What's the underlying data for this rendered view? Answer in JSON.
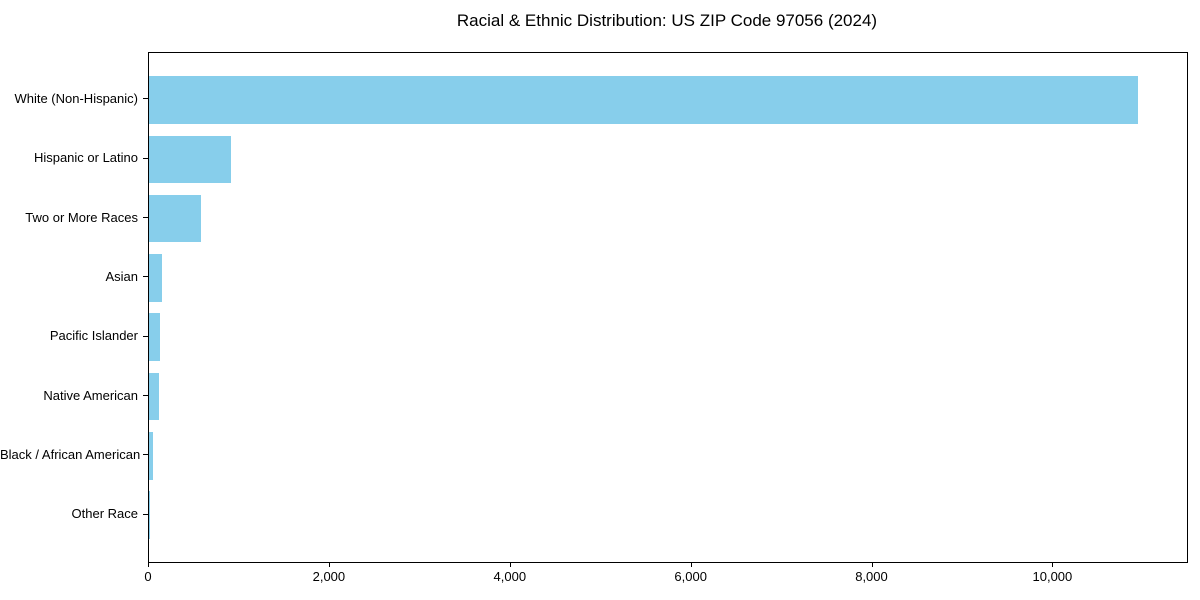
{
  "chart_data": {
    "type": "bar",
    "orientation": "horizontal",
    "title": "Racial & Ethnic Distribution: US ZIP Code 97056 (2024)",
    "categories": [
      "White (Non-Hispanic)",
      "Hispanic or Latino",
      "Two or More Races",
      "Asian",
      "Pacific Islander",
      "Native American",
      "Black / African American",
      "Other Race"
    ],
    "values": [
      10930,
      905,
      575,
      145,
      120,
      105,
      45,
      10
    ],
    "xlabel": "",
    "ylabel": "",
    "xlim": [
      0,
      11477
    ],
    "x_ticks": [
      0,
      2000,
      4000,
      6000,
      8000,
      10000
    ],
    "x_tick_labels": [
      "0",
      "2,000",
      "4,000",
      "6,000",
      "8,000",
      "10,000"
    ],
    "bar_color": "#87CEEB",
    "axis_color": "#000000",
    "text_color": "#000000",
    "grid": false,
    "legend": "none"
  }
}
